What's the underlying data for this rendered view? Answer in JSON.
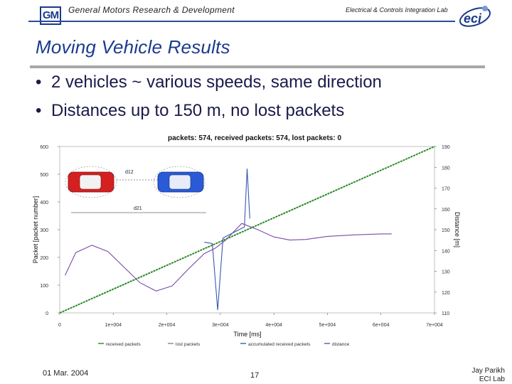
{
  "header": {
    "logo_text": "GM",
    "org_left": "General Motors Research & Development",
    "org_right": "Electrical & Controls Integration Lab",
    "eci_logo_text": "eci"
  },
  "slide": {
    "title": "Moving Vehicle Results",
    "bullets": [
      "2 vehicles ~ various speeds, same direction",
      "Distances up to 150 m, no lost packets"
    ]
  },
  "chart_data": {
    "type": "line",
    "title": "packets: 574, received packets: 574, lost packets: 0",
    "xlabel": "Time [ms]",
    "ylabel": "Packet [packet number]",
    "y2label": "Distance [m]",
    "xlim": [
      0,
      70000
    ],
    "ylim": [
      0,
      600
    ],
    "y2lim": [
      110,
      190
    ],
    "x_tick_labels": [
      "0",
      "1e+004",
      "2e+004",
      "3e+004",
      "4e+004",
      "5e+004",
      "6e+004",
      "7e+004"
    ],
    "y_tick_labels": [
      "0",
      "100",
      "200",
      "300",
      "400",
      "500",
      "600"
    ],
    "y2_tick_labels": [
      "110",
      "120",
      "130",
      "140",
      "150",
      "160",
      "170",
      "180",
      "190"
    ],
    "legend": [
      "received packets",
      "lost packets",
      "accumulated received packets",
      "distance"
    ],
    "legend_placement": "bottom",
    "grid": false,
    "inset_labels": [
      "d12",
      "d21"
    ],
    "series": [
      {
        "name": "received packets",
        "color": "#2a8a2a",
        "axis": "left",
        "x": [
          0,
          70000
        ],
        "y": [
          0,
          600
        ]
      },
      {
        "name": "accumulated received packets",
        "color": "#3a5ab0",
        "axis": "left",
        "x": [
          27000,
          28500,
          29500,
          30500,
          31500,
          32500,
          33500,
          34500,
          35000,
          35500
        ],
        "y": [
          255,
          250,
          10,
          270,
          280,
          290,
          300,
          310,
          520,
          340
        ]
      },
      {
        "name": "distance",
        "color": "#7a4aa8",
        "axis": "right",
        "x": [
          1000,
          3000,
          6000,
          9000,
          12000,
          15000,
          18000,
          21000,
          24000,
          27000,
          29000,
          31000,
          34000,
          37000,
          40000,
          43000,
          46000,
          50000,
          55000,
          60000,
          62000
        ],
        "y": [
          128,
          139,
          142.5,
          139.5,
          132,
          124.5,
          120.5,
          123,
          131,
          138.5,
          141,
          145,
          153,
          150,
          146.5,
          145,
          145.3,
          146.8,
          147.5,
          148,
          148
        ]
      }
    ]
  },
  "footer": {
    "date": "01 Mar. 2004",
    "page": "17",
    "author": "Jay Parikh",
    "lab": "ECI Lab"
  },
  "colors": {
    "title": "#1a3a8c",
    "header_rule": "#2a4a9a",
    "title_rule": "#a8a8a8",
    "car_red": "#d42020",
    "car_blue": "#2a5ad8"
  }
}
